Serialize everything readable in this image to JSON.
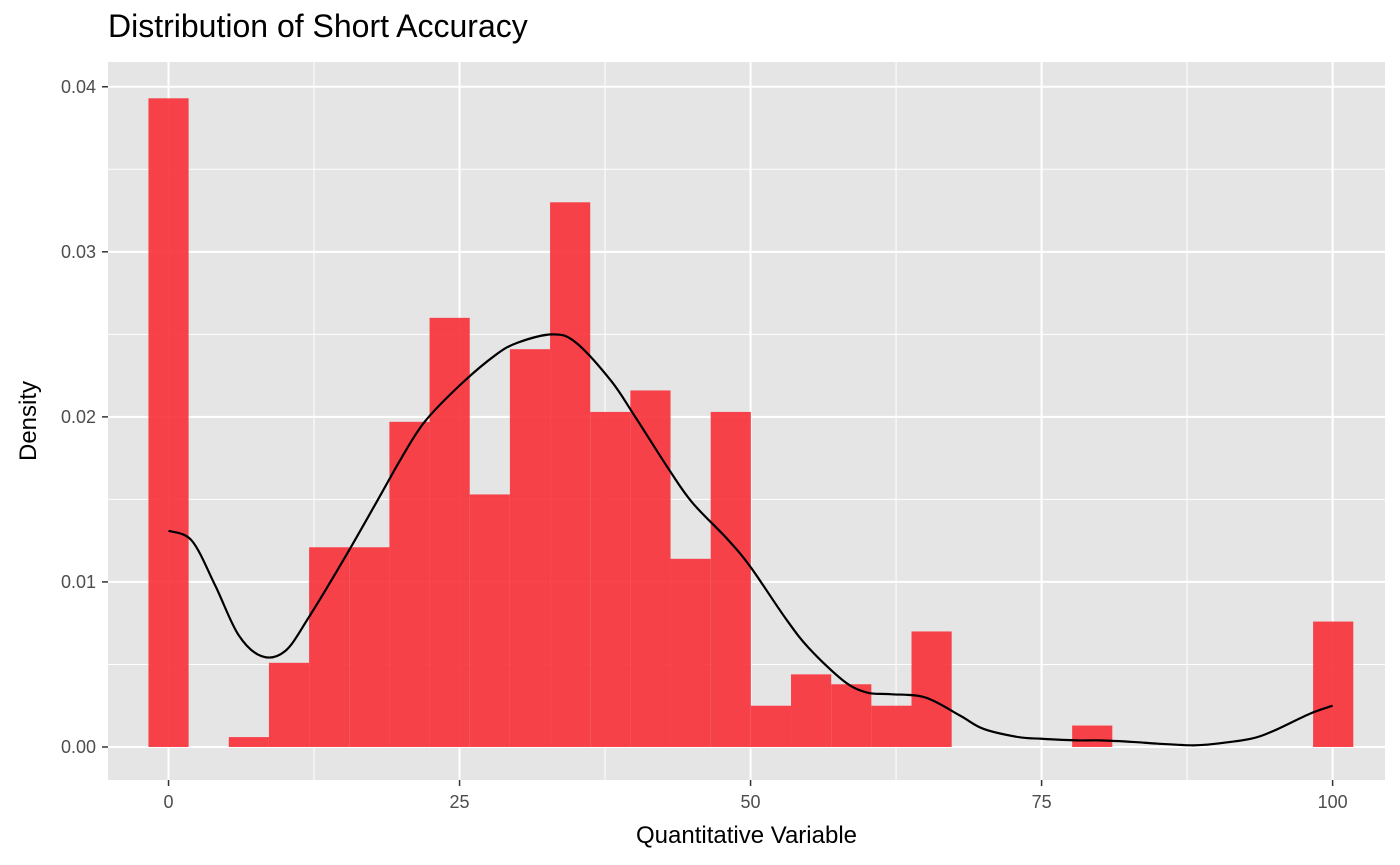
{
  "chart_data": {
    "type": "bar",
    "title": "Distribution of Short Accuracy",
    "xlabel": "Quantitative Variable",
    "ylabel": "Density",
    "xlim": [
      -5.2,
      104.5
    ],
    "ylim": [
      -0.002,
      0.0415
    ],
    "x_ticks": [
      0,
      25,
      50,
      75,
      100
    ],
    "x_tick_labels": [
      "0",
      "25",
      "50",
      "75",
      "100"
    ],
    "y_ticks": [
      0,
      0.01,
      0.02,
      0.03,
      0.04
    ],
    "y_tick_labels": [
      "0.00",
      "0.01",
      "0.02",
      "0.03",
      "0.04"
    ],
    "grid": true,
    "legend": "none",
    "bar_color": "#F8333C",
    "panel_background": "#E5E5E5",
    "grid_color": "#FFFFFF",
    "histogram": {
      "bin_width": 3.45,
      "bin_centers": [
        0,
        3.45,
        6.9,
        10.35,
        13.8,
        17.25,
        20.7,
        24.15,
        27.6,
        31.05,
        34.5,
        37.95,
        41.4,
        44.85,
        48.3,
        51.75,
        55.2,
        58.65,
        62.1,
        65.55,
        69,
        72.45,
        75.9,
        79.35,
        82.8,
        86.25,
        89.7,
        93.15,
        96.6,
        100.05
      ],
      "density": [
        0.0393,
        0,
        0.0006,
        0.0051,
        0.0121,
        0.0121,
        0.0197,
        0.026,
        0.0153,
        0.0241,
        0.033,
        0.0203,
        0.0216,
        0.0114,
        0.0203,
        0.0025,
        0.0044,
        0.0038,
        0.0025,
        0.007,
        0,
        0,
        0,
        0.0013,
        0,
        0,
        0,
        0,
        0,
        0.0076
      ]
    },
    "density_curve": {
      "x": [
        0,
        2,
        4,
        6,
        8,
        10,
        12,
        15,
        18,
        20,
        22,
        25,
        28,
        30,
        33,
        35,
        38,
        40,
        43,
        45,
        48,
        50,
        53,
        55,
        58,
        60,
        62,
        65,
        68,
        70,
        73,
        75,
        78,
        80,
        83,
        85,
        88,
        90,
        93,
        95,
        98,
        100
      ],
      "y": [
        0.0131,
        0.0125,
        0.0098,
        0.0068,
        0.0055,
        0.0058,
        0.0078,
        0.0113,
        0.015,
        0.0175,
        0.0197,
        0.0219,
        0.0237,
        0.0245,
        0.025,
        0.0245,
        0.0222,
        0.0201,
        0.0168,
        0.0148,
        0.0126,
        0.0109,
        0.0078,
        0.006,
        0.004,
        0.0033,
        0.0032,
        0.003,
        0.0019,
        0.0011,
        0.0006,
        0.0005,
        0.0004,
        0.0004,
        0.0003,
        0.0002,
        0.0001,
        0.0002,
        0.0005,
        0.001,
        0.002,
        0.0025
      ]
    }
  }
}
